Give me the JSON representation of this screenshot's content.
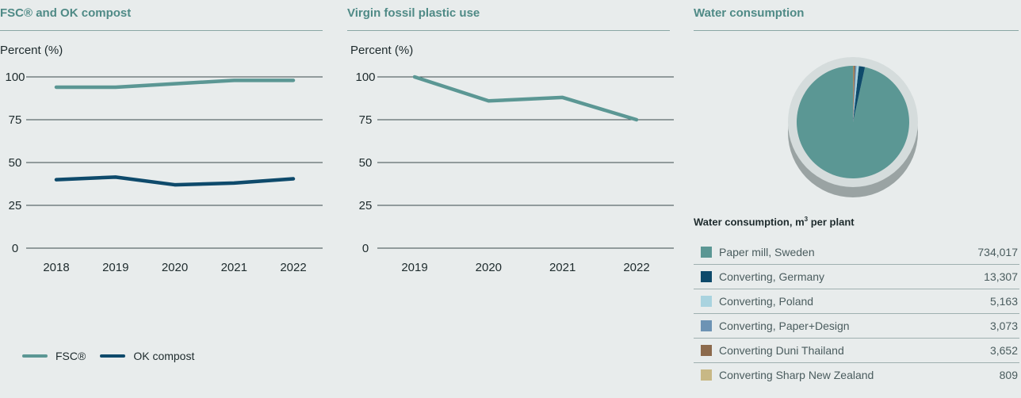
{
  "chart_data": [
    {
      "type": "line",
      "title": "FSC® and OK compost",
      "ylabel": "Percent (%)",
      "x": [
        "2018",
        "2019",
        "2020",
        "2021",
        "2022"
      ],
      "ylim": [
        0,
        100
      ],
      "yticks": [
        0,
        25,
        50,
        75,
        100
      ],
      "grid": true,
      "legend": "bottom",
      "series": [
        {
          "name": "FSC®",
          "values": [
            94,
            94,
            96,
            98,
            98
          ],
          "color": "#5b9794"
        },
        {
          "name": "OK compost",
          "values": [
            40,
            41.5,
            37,
            38,
            40.5
          ],
          "color": "#0e4a6b"
        }
      ]
    },
    {
      "type": "line",
      "title": "Virgin fossil plastic use",
      "ylabel": "Percent (%)",
      "x": [
        "2019",
        "2020",
        "2021",
        "2022"
      ],
      "ylim": [
        0,
        100
      ],
      "yticks": [
        0,
        25,
        50,
        75,
        100
      ],
      "grid": true,
      "series": [
        {
          "values": [
            100,
            86,
            88,
            75
          ],
          "color": "#5b9794"
        }
      ]
    },
    {
      "type": "pie",
      "title": "Water consumption",
      "table_title": "Water consumption, m",
      "table_title_sup": "3",
      "table_title_suffix": " per plant",
      "slices": [
        {
          "label": "Paper mill, Sweden",
          "value": 734017,
          "display": "734,017",
          "color": "#5b9794"
        },
        {
          "label": "Converting, Germany",
          "value": 13307,
          "display": "13,307",
          "color": "#0e4a6b"
        },
        {
          "label": "Converting, Poland",
          "value": 5163,
          "display": "5,163",
          "color": "#a9d3df"
        },
        {
          "label": "Converting, Paper+Design",
          "value": 3073,
          "display": "3,073",
          "color": "#6d93b4"
        },
        {
          "label": "Converting Duni Thailand",
          "value": 3652,
          "display": "3,652",
          "color": "#8c6a4c"
        },
        {
          "label": "Converting Sharp New Zealand",
          "value": 809,
          "display": "809",
          "color": "#c8b885"
        }
      ]
    }
  ]
}
